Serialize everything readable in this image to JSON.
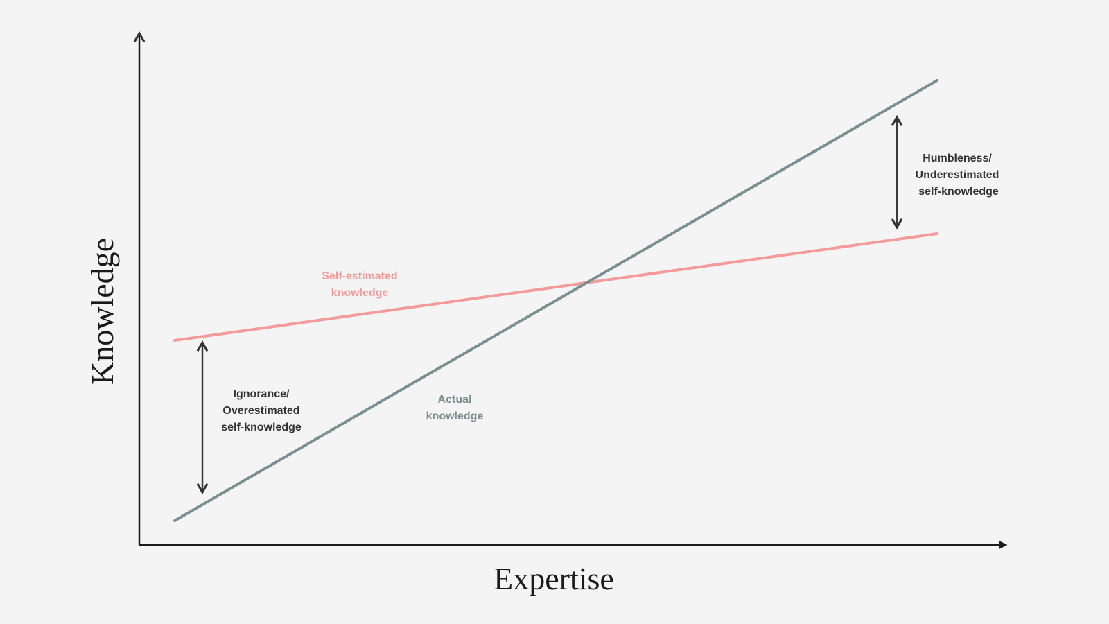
{
  "axes": {
    "y_label": "Knowledge",
    "x_label": "Expertise"
  },
  "labels": {
    "self_estimated": [
      "Self-estimated",
      "knowledge"
    ],
    "actual": [
      "Actual",
      "knowledge"
    ],
    "ignorance": [
      "Ignorance/",
      "Overestimated",
      "self-knowledge"
    ],
    "humbleness": [
      "Humbleness/",
      "Underestimated",
      "self-knowledge"
    ]
  }
}
